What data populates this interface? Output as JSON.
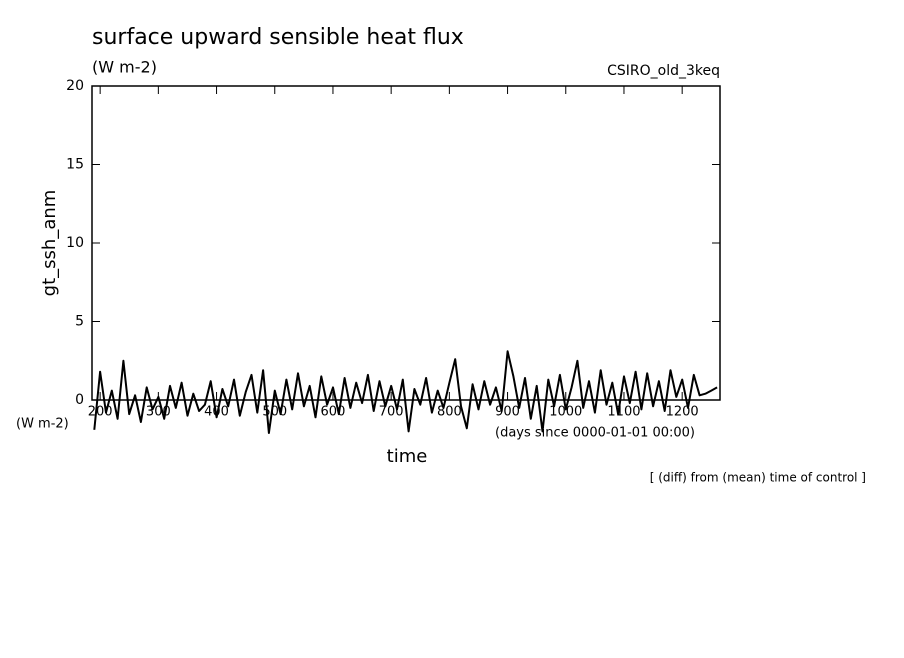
{
  "chart_data": {
    "type": "line",
    "title": "surface upward sensible heat flux",
    "subtitle": "(W m-2)",
    "annotation": "CSIRO_old_3keq",
    "y_label": "gt_ssh_anm",
    "x_label": "time",
    "x_unit": "(days since 0000-01-01 00:00)",
    "footnote": "[ (diff) from (mean) time of control ]",
    "x": [
      190,
      200,
      210,
      220,
      230,
      240,
      250,
      260,
      270,
      280,
      290,
      300,
      310,
      320,
      330,
      340,
      350,
      360,
      370,
      380,
      390,
      400,
      410,
      420,
      430,
      440,
      450,
      460,
      470,
      480,
      490,
      500,
      510,
      520,
      530,
      540,
      550,
      560,
      570,
      580,
      590,
      600,
      610,
      620,
      630,
      640,
      650,
      660,
      670,
      680,
      690,
      700,
      710,
      720,
      730,
      740,
      750,
      760,
      770,
      780,
      790,
      800,
      810,
      820,
      830,
      840,
      850,
      860,
      870,
      880,
      890,
      900,
      910,
      920,
      930,
      940,
      950,
      960,
      970,
      980,
      990,
      1000,
      1010,
      1020,
      1030,
      1040,
      1050,
      1060,
      1070,
      1080,
      1090,
      1100,
      1110,
      1120,
      1130,
      1140,
      1150,
      1160,
      1170,
      1180,
      1190,
      1200,
      1210,
      1220,
      1230,
      1240,
      1250,
      1260
    ],
    "series": [
      {
        "color": "#000000",
        "values": [
          -1.9,
          1.8,
          -0.8,
          0.6,
          -1.2,
          2.5,
          -0.9,
          0.3,
          -1.4,
          0.8,
          -0.6,
          0.2,
          -1.2,
          0.9,
          -0.5,
          1.1,
          -1.0,
          0.4,
          -0.7,
          -0.3,
          1.2,
          -1.1,
          0.7,
          -0.4,
          1.3,
          -1.0,
          0.5,
          1.6,
          -0.8,
          1.9,
          -2.1,
          0.6,
          -0.9,
          1.3,
          -0.6,
          1.7,
          -0.4,
          0.9,
          -1.1,
          1.5,
          -0.3,
          0.8,
          -0.9,
          1.4,
          -0.5,
          1.1,
          -0.2,
          1.6,
          -0.7,
          1.2,
          -0.4,
          0.9,
          -0.6,
          1.3,
          -2.0,
          0.7,
          -0.3,
          1.4,
          -0.8,
          0.6,
          -0.5,
          1.1,
          2.6,
          -0.4,
          -1.8,
          1.0,
          -0.6,
          1.2,
          -0.3,
          0.8,
          -0.7,
          3.1,
          1.5,
          -0.5,
          1.4,
          -1.2,
          0.9,
          -2.0,
          1.3,
          -0.4,
          1.6,
          -0.6,
          0.8,
          2.5,
          -0.5,
          1.2,
          -0.8,
          1.9,
          -0.3,
          1.1,
          -0.9,
          1.5,
          -0.2,
          1.8,
          -0.6,
          1.7,
          -0.4,
          1.2,
          -0.7,
          1.9,
          0.2,
          1.3,
          -0.5,
          1.6,
          0.3,
          0.4,
          0.6,
          0.8
        ]
      }
    ],
    "xlim": [
      186,
      1265
    ],
    "xticks": [
      200,
      300,
      400,
      500,
      600,
      700,
      800,
      900,
      1000,
      1100,
      1200
    ],
    "ylim": [
      0,
      20
    ],
    "yticks": [
      0,
      5,
      10,
      15,
      20
    ]
  }
}
